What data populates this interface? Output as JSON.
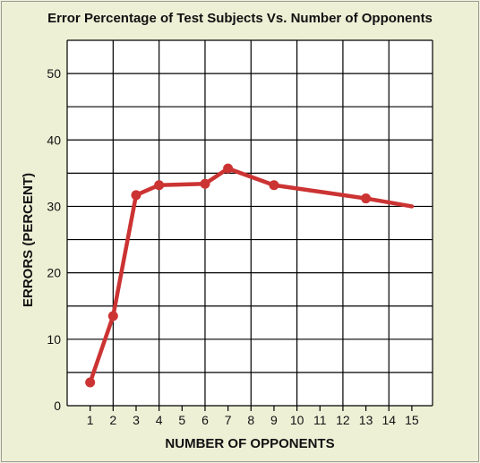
{
  "chart_data": {
    "type": "line",
    "title": "Error Percentage of Test Subjects Vs. Number of Opponents",
    "xlabel": "NUMBER OF OPPONENTS",
    "ylabel": "ERRORS (PERCENT)",
    "x_ticks": [
      1,
      2,
      3,
      4,
      5,
      6,
      7,
      8,
      9,
      10,
      11,
      12,
      13,
      14,
      15
    ],
    "y_ticks": [
      0,
      10,
      20,
      30,
      40,
      50
    ],
    "xlim": [
      0,
      15.9
    ],
    "ylim": [
      0,
      55
    ],
    "grid": true,
    "series": [
      {
        "x": [
          1,
          2,
          3,
          4,
          6,
          7,
          9,
          13,
          15
        ],
        "y": [
          3.5,
          13.5,
          31.7,
          33.2,
          33.4,
          35.7,
          33.2,
          31.2,
          30.0
        ],
        "markers": [
          true,
          true,
          true,
          true,
          true,
          true,
          true,
          true,
          false
        ]
      }
    ],
    "line_color": "#cc3333",
    "grid_color": "#000000",
    "background_color": "#ffffff",
    "page_color": "#eef0d6"
  }
}
